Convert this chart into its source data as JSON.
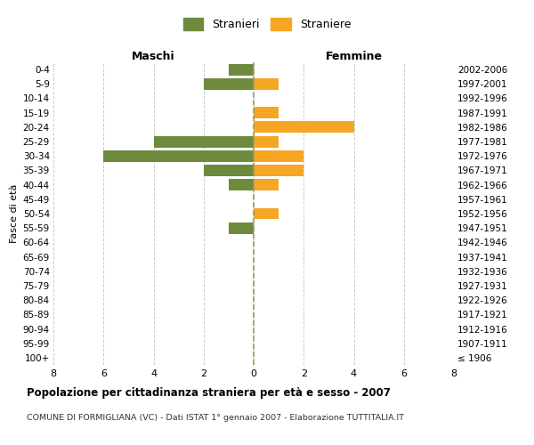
{
  "age_groups": [
    "100+",
    "95-99",
    "90-94",
    "85-89",
    "80-84",
    "75-79",
    "70-74",
    "65-69",
    "60-64",
    "55-59",
    "50-54",
    "45-49",
    "40-44",
    "35-39",
    "30-34",
    "25-29",
    "20-24",
    "15-19",
    "10-14",
    "5-9",
    "0-4"
  ],
  "birth_years": [
    "≤ 1906",
    "1907-1911",
    "1912-1916",
    "1917-1921",
    "1922-1926",
    "1927-1931",
    "1932-1936",
    "1937-1941",
    "1942-1946",
    "1947-1951",
    "1952-1956",
    "1957-1961",
    "1962-1966",
    "1967-1971",
    "1972-1976",
    "1977-1981",
    "1982-1986",
    "1987-1991",
    "1992-1996",
    "1997-2001",
    "2002-2006"
  ],
  "maschi": [
    0,
    0,
    0,
    0,
    0,
    0,
    0,
    0,
    0,
    1,
    0,
    0,
    1,
    2,
    6,
    4,
    0,
    0,
    0,
    2,
    1
  ],
  "femmine": [
    0,
    0,
    0,
    0,
    0,
    0,
    0,
    0,
    0,
    0,
    1,
    0,
    1,
    2,
    2,
    1,
    4,
    1,
    0,
    1,
    0
  ],
  "male_color": "#6e8b3d",
  "female_color": "#f5a623",
  "title": "Popolazione per cittadinanza straniera per età e sesso - 2007",
  "subtitle": "COMUNE DI FORMIGLIANA (VC) - Dati ISTAT 1° gennaio 2007 - Elaborazione TUTTITALIA.IT",
  "xlabel_left": "Maschi",
  "xlabel_right": "Femmine",
  "ylabel_left": "Fasce di età",
  "legend_male": "Stranieri",
  "legend_female": "Straniere",
  "xlim": 8,
  "bg_color": "#ffffff",
  "grid_color": "#cccccc",
  "bar_height": 0.8,
  "dashed_line_color": "#999966"
}
